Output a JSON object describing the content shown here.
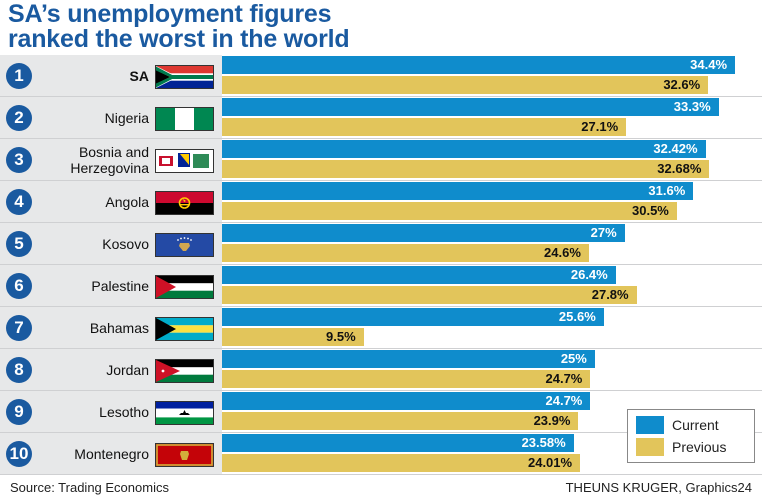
{
  "title_lines": [
    "SA’s unemployment figures",
    "ranked the worst in the world"
  ],
  "colors": {
    "current": "#0f8ccc",
    "previous": "#e2c55b",
    "title": "#1a5aa0"
  },
  "legend": {
    "current": "Current",
    "previous": "Previous"
  },
  "source": "Source: Trading Economics",
  "credit": "THEUNS KRUGER, Graphics24",
  "chart_data": {
    "type": "bar",
    "orientation": "horizontal",
    "categories": [
      "SA",
      "Nigeria",
      "Bosnia and Herzegovina",
      "Angola",
      "Kosovo",
      "Palestine",
      "Bahamas",
      "Jordan",
      "Lesotho",
      "Montenegro"
    ],
    "ranks": [
      "1",
      "2",
      "3",
      "4",
      "5",
      "6",
      "7",
      "8",
      "9",
      "10"
    ],
    "series": [
      {
        "name": "Current",
        "values": [
          34.4,
          33.3,
          32.42,
          31.6,
          27,
          26.4,
          25.6,
          25,
          24.7,
          23.58
        ],
        "labels": [
          "34.4%",
          "33.3%",
          "32.42%",
          "31.6%",
          "27%",
          "26.4%",
          "25.6%",
          "25%",
          "24.7%",
          "23.58%"
        ]
      },
      {
        "name": "Previous",
        "values": [
          32.6,
          27.1,
          32.68,
          30.5,
          24.6,
          27.8,
          9.5,
          24.7,
          23.9,
          24.01
        ],
        "labels": [
          "32.6%",
          "27.1%",
          "32.68%",
          "30.5%",
          "24.6%",
          "27.8%",
          "9.5%",
          "24.7%",
          "23.9%",
          "24.01%"
        ]
      }
    ],
    "flags": [
      "south-africa-flag",
      "nigeria-flag",
      "bosnia-flag",
      "angola-flag",
      "kosovo-flag",
      "palestine-flag",
      "bahamas-flag",
      "jordan-flag",
      "lesotho-flag",
      "montenegro-flag"
    ],
    "xlim": [
      0,
      35
    ],
    "legend_position": "bottom-right",
    "grid": false
  }
}
